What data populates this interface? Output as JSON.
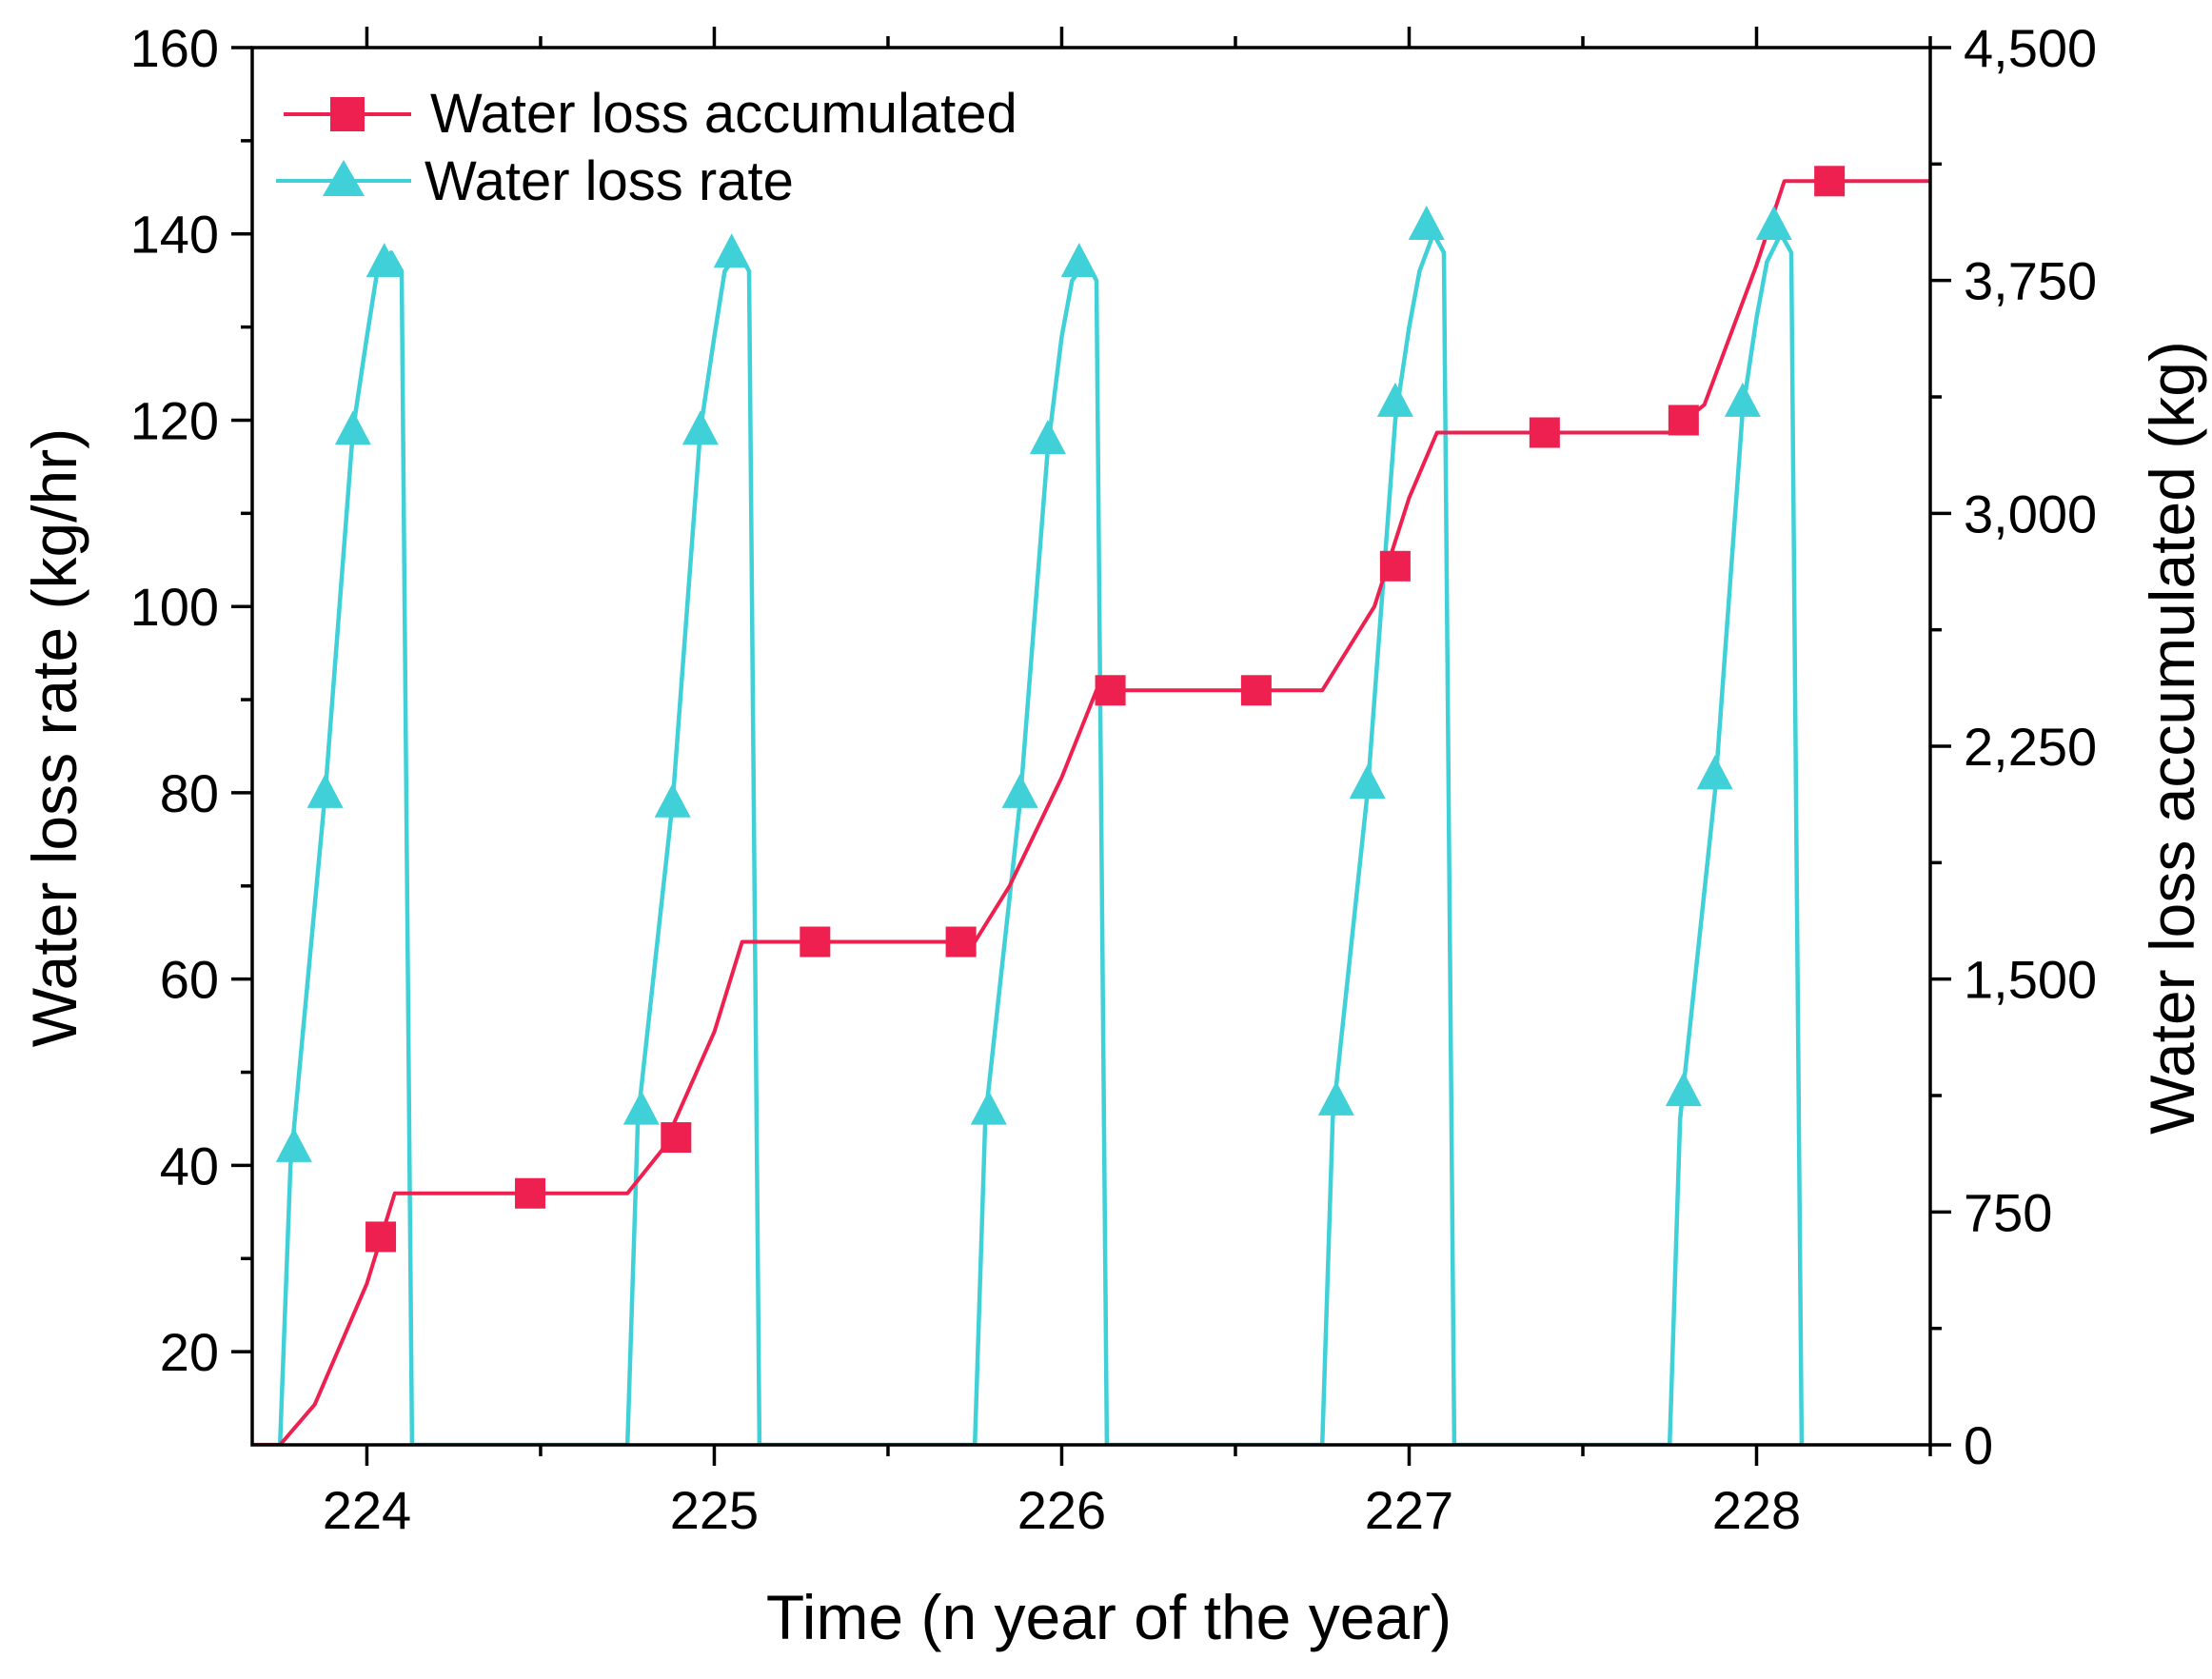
{
  "chart_data": {
    "type": "line",
    "title": "",
    "xlabel": "Time (n year of the year)",
    "ylabel_left": "Water loss rate (kg/hr)",
    "ylabel_right": "Water loss accumulated (kg)",
    "xlim": [
      223.67,
      228.5
    ],
    "ylim_left": [
      10,
      160
    ],
    "ylim_right": [
      0,
      4500
    ],
    "x_ticks": [
      "224",
      "225",
      "226",
      "227",
      "228"
    ],
    "y_left_ticks": [
      "20",
      "40",
      "60",
      "80",
      "100",
      "120",
      "140",
      "160"
    ],
    "y_right_ticks": [
      "0",
      "750",
      "1,500",
      "2,250",
      "3,000",
      "3,750",
      "4,500"
    ],
    "legend_position": "top-left",
    "series": [
      {
        "name": "Water loss accumulated",
        "axis": "right",
        "color": "#ee2050",
        "marker": "square",
        "curve": [
          [
            223.67,
            0
          ],
          [
            223.75,
            0
          ],
          [
            223.85,
            130
          ],
          [
            224.0,
            520
          ],
          [
            224.08,
            810
          ],
          [
            224.75,
            810
          ],
          [
            224.85,
            950
          ],
          [
            225.0,
            1330
          ],
          [
            225.08,
            1620
          ],
          [
            225.75,
            1620
          ],
          [
            225.85,
            1800
          ],
          [
            226.0,
            2150
          ],
          [
            226.1,
            2430
          ],
          [
            226.75,
            2430
          ],
          [
            226.9,
            2700
          ],
          [
            227.0,
            3050
          ],
          [
            227.08,
            3260
          ],
          [
            227.75,
            3260
          ],
          [
            227.85,
            3350
          ],
          [
            228.0,
            3800
          ],
          [
            228.08,
            4070
          ],
          [
            228.5,
            4070
          ]
        ],
        "markers": [
          [
            224.04,
            670
          ],
          [
            224.47,
            810
          ],
          [
            224.89,
            990
          ],
          [
            225.29,
            1620
          ],
          [
            225.71,
            1620
          ],
          [
            226.14,
            2430
          ],
          [
            226.56,
            2430
          ],
          [
            226.96,
            2830
          ],
          [
            227.39,
            3260
          ],
          [
            227.79,
            3300
          ],
          [
            228.21,
            4070
          ]
        ]
      },
      {
        "name": "Water loss rate",
        "axis": "left",
        "color": "#40d0d8",
        "marker": "triangle",
        "curve": [
          [
            223.67,
            10
          ],
          [
            223.75,
            10
          ],
          [
            223.78,
            40
          ],
          [
            223.88,
            80
          ],
          [
            223.96,
            119
          ],
          [
            224.0,
            129
          ],
          [
            224.03,
            136
          ],
          [
            224.07,
            138
          ],
          [
            224.1,
            136
          ],
          [
            224.13,
            10
          ],
          [
            224.75,
            10
          ],
          [
            224.78,
            45
          ],
          [
            224.88,
            79
          ],
          [
            224.96,
            119
          ],
          [
            225.0,
            129
          ],
          [
            225.03,
            136
          ],
          [
            225.07,
            138
          ],
          [
            225.1,
            136
          ],
          [
            225.13,
            10
          ],
          [
            225.75,
            10
          ],
          [
            225.78,
            45
          ],
          [
            225.88,
            79
          ],
          [
            225.96,
            117
          ],
          [
            226.0,
            129
          ],
          [
            226.03,
            135
          ],
          [
            226.07,
            137
          ],
          [
            226.1,
            135
          ],
          [
            226.13,
            10
          ],
          [
            226.75,
            10
          ],
          [
            226.78,
            45
          ],
          [
            226.88,
            80
          ],
          [
            226.96,
            120
          ],
          [
            227.0,
            130
          ],
          [
            227.03,
            136
          ],
          [
            227.07,
            140
          ],
          [
            227.1,
            138
          ],
          [
            227.13,
            10
          ],
          [
            227.75,
            10
          ],
          [
            227.78,
            45
          ],
          [
            227.88,
            80
          ],
          [
            227.96,
            121
          ],
          [
            228.0,
            131
          ],
          [
            228.03,
            137
          ],
          [
            228.07,
            140
          ],
          [
            228.1,
            138
          ],
          [
            228.13,
            10
          ]
        ],
        "markers": [
          [
            223.79,
            42
          ],
          [
            223.88,
            80
          ],
          [
            223.96,
            119
          ],
          [
            224.05,
            137
          ],
          [
            224.79,
            46
          ],
          [
            224.88,
            79
          ],
          [
            224.96,
            119
          ],
          [
            225.05,
            138
          ],
          [
            225.79,
            46
          ],
          [
            225.88,
            80
          ],
          [
            225.96,
            118
          ],
          [
            226.05,
            137
          ],
          [
            226.79,
            47
          ],
          [
            226.88,
            81
          ],
          [
            226.96,
            122
          ],
          [
            227.05,
            141
          ],
          [
            227.79,
            48
          ],
          [
            227.88,
            82
          ],
          [
            227.96,
            122
          ],
          [
            228.05,
            141
          ]
        ]
      }
    ]
  }
}
